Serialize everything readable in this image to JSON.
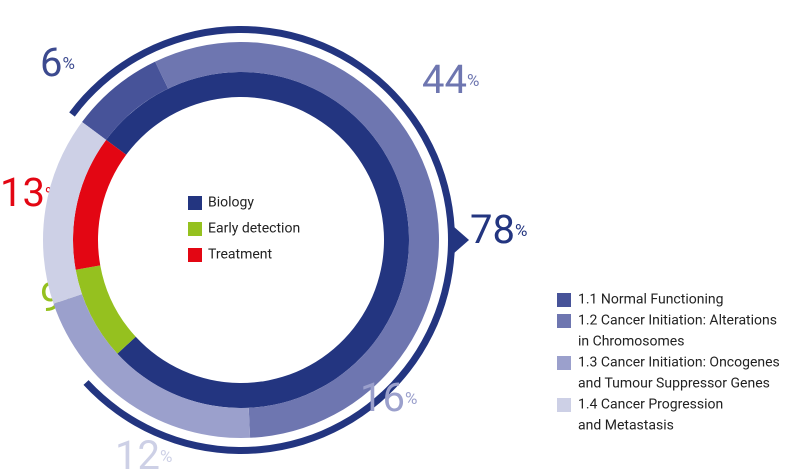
{
  "chart_data": [
    {
      "type": "donut",
      "unit": "%",
      "categories": [
        "Biology",
        "Early detection",
        "Treatment"
      ],
      "values": [
        78,
        9,
        13
      ],
      "colors": [
        "#233580",
        "#95c11f",
        "#e30613"
      ]
    },
    {
      "type": "donut",
      "unit": "%",
      "categories": [
        [
          "1.1 Normal Functioning"
        ],
        [
          "1.2 Cancer Initiation: Alterations",
          "in Chromosomes"
        ],
        [
          "1.3 Cancer Initiation: Oncogenes",
          "and Tumour Suppressor Genes"
        ],
        [
          "1.4 Cancer Progression",
          "and Metastasis"
        ]
      ],
      "values": [
        6,
        44,
        16,
        12
      ],
      "colors": [
        "#475399",
        "#6e76b0",
        "#9ba0cc",
        "#cdd0e6"
      ]
    }
  ]
}
